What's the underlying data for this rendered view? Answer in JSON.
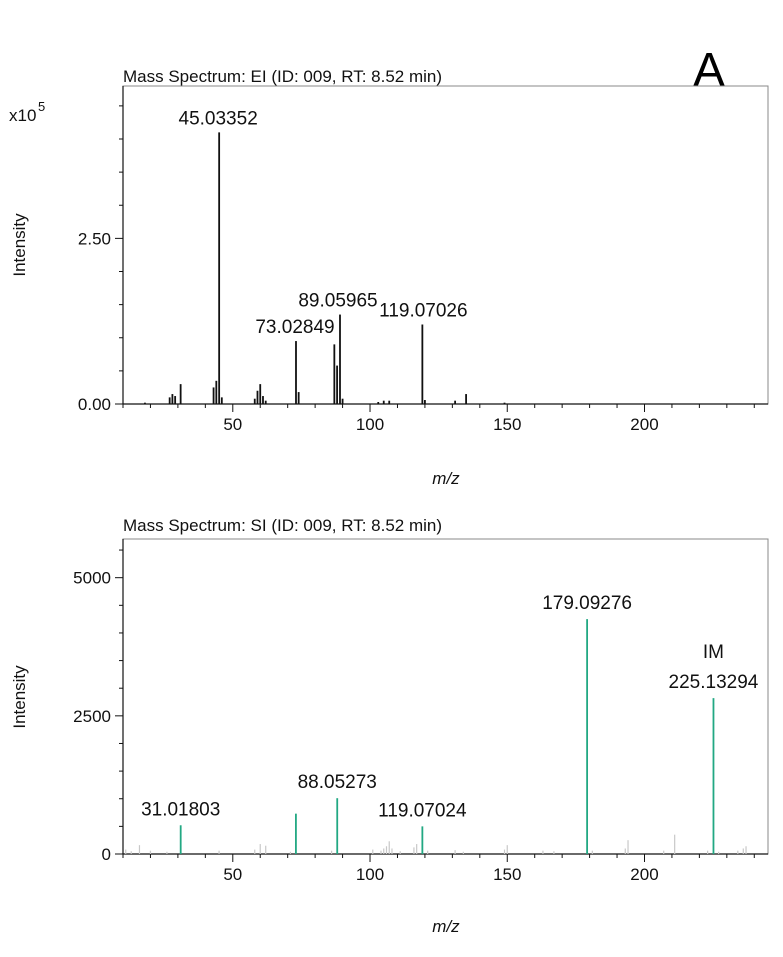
{
  "panel_label": "A",
  "chart_data": [
    {
      "type": "bar",
      "title": "Mass Spectrum: EI (ID: 009, RT: 8.52 min)",
      "xlabel": "m/z",
      "ylabel": "Intensity",
      "y_multiplier": "x10",
      "y_multiplier_exp": "5",
      "xlim": [
        10,
        245
      ],
      "ylim": [
        0,
        4.8
      ],
      "xticks": [
        {
          "v": 50,
          "label": "50"
        },
        {
          "v": 100,
          "label": "100"
        },
        {
          "v": 150,
          "label": "150"
        },
        {
          "v": 200,
          "label": "200"
        }
      ],
      "yticks": [
        {
          "v": 0,
          "label": "0.00"
        },
        {
          "v": 2.5,
          "label": "2.50"
        }
      ],
      "grid": false,
      "colors": {
        "peak": "#111111"
      },
      "peaks": [
        {
          "x": 18,
          "y": 0.02
        },
        {
          "x": 27,
          "y": 0.1
        },
        {
          "x": 28,
          "y": 0.15
        },
        {
          "x": 29,
          "y": 0.12
        },
        {
          "x": 31,
          "y": 0.3
        },
        {
          "x": 43,
          "y": 0.25
        },
        {
          "x": 44,
          "y": 0.35
        },
        {
          "x": 45.03352,
          "y": 4.1,
          "label": "45.03352"
        },
        {
          "x": 46,
          "y": 0.1
        },
        {
          "x": 58,
          "y": 0.08
        },
        {
          "x": 59,
          "y": 0.2
        },
        {
          "x": 60,
          "y": 0.3
        },
        {
          "x": 61,
          "y": 0.12
        },
        {
          "x": 62,
          "y": 0.05
        },
        {
          "x": 73.02849,
          "y": 0.95,
          "label": "73.02849"
        },
        {
          "x": 74,
          "y": 0.18
        },
        {
          "x": 87,
          "y": 0.9
        },
        {
          "x": 88,
          "y": 0.58
        },
        {
          "x": 89.05965,
          "y": 1.35,
          "label": "89.05965"
        },
        {
          "x": 90,
          "y": 0.08
        },
        {
          "x": 103,
          "y": 0.03
        },
        {
          "x": 105,
          "y": 0.05
        },
        {
          "x": 107,
          "y": 0.05
        },
        {
          "x": 119.07026,
          "y": 1.2,
          "label": "119.07026"
        },
        {
          "x": 120,
          "y": 0.06
        },
        {
          "x": 131,
          "y": 0.05
        },
        {
          "x": 135,
          "y": 0.15
        },
        {
          "x": 149,
          "y": 0.02
        }
      ]
    },
    {
      "type": "bar",
      "title": "Mass Spectrum: SI (ID: 009, RT: 8.52 min)",
      "xlabel": "m/z",
      "ylabel": "Intensity",
      "xlim": [
        10,
        245
      ],
      "ylim": [
        0,
        5700
      ],
      "xticks": [
        {
          "v": 50,
          "label": "50"
        },
        {
          "v": 100,
          "label": "100"
        },
        {
          "v": 150,
          "label": "150"
        },
        {
          "v": 200,
          "label": "200"
        }
      ],
      "yticks": [
        {
          "v": 0,
          "label": "0"
        },
        {
          "v": 2500,
          "label": "2500"
        },
        {
          "v": 5000,
          "label": "5000"
        }
      ],
      "grid": false,
      "colors": {
        "major": "#22a883",
        "minor": "#c8c8c8",
        "im_label": "#1a63c9"
      },
      "peaks": [
        {
          "x": 11,
          "y": 80,
          "kind": "minor"
        },
        {
          "x": 13,
          "y": 50,
          "kind": "minor"
        },
        {
          "x": 16,
          "y": 160,
          "kind": "minor"
        },
        {
          "x": 20,
          "y": 60,
          "kind": "minor"
        },
        {
          "x": 26,
          "y": 40,
          "kind": "minor"
        },
        {
          "x": 31.01803,
          "y": 520,
          "kind": "major",
          "label": "31.01803"
        },
        {
          "x": 45,
          "y": 60,
          "kind": "minor"
        },
        {
          "x": 58,
          "y": 80,
          "kind": "minor"
        },
        {
          "x": 60,
          "y": 180,
          "kind": "minor"
        },
        {
          "x": 62,
          "y": 150,
          "kind": "minor"
        },
        {
          "x": 71,
          "y": 40,
          "kind": "minor"
        },
        {
          "x": 73,
          "y": 730,
          "kind": "major"
        },
        {
          "x": 86,
          "y": 60,
          "kind": "minor"
        },
        {
          "x": 88.05273,
          "y": 1010,
          "kind": "major",
          "label": "88.05273"
        },
        {
          "x": 101,
          "y": 80,
          "kind": "minor"
        },
        {
          "x": 104,
          "y": 60,
          "kind": "minor"
        },
        {
          "x": 105,
          "y": 100,
          "kind": "minor"
        },
        {
          "x": 106,
          "y": 140,
          "kind": "minor"
        },
        {
          "x": 107,
          "y": 230,
          "kind": "minor"
        },
        {
          "x": 108,
          "y": 100,
          "kind": "minor"
        },
        {
          "x": 111,
          "y": 50,
          "kind": "minor"
        },
        {
          "x": 116,
          "y": 120,
          "kind": "minor"
        },
        {
          "x": 117,
          "y": 180,
          "kind": "minor"
        },
        {
          "x": 119.07024,
          "y": 500,
          "kind": "major",
          "label": "119.07024"
        },
        {
          "x": 121,
          "y": 60,
          "kind": "minor"
        },
        {
          "x": 131,
          "y": 70,
          "kind": "minor"
        },
        {
          "x": 134,
          "y": 40,
          "kind": "minor"
        },
        {
          "x": 149,
          "y": 80,
          "kind": "minor"
        },
        {
          "x": 150,
          "y": 160,
          "kind": "minor"
        },
        {
          "x": 163,
          "y": 60,
          "kind": "minor"
        },
        {
          "x": 167,
          "y": 50,
          "kind": "minor"
        },
        {
          "x": 179.09276,
          "y": 4250,
          "kind": "major",
          "label": "179.09276"
        },
        {
          "x": 181,
          "y": 60,
          "kind": "minor"
        },
        {
          "x": 193,
          "y": 100,
          "kind": "minor"
        },
        {
          "x": 194,
          "y": 250,
          "kind": "minor"
        },
        {
          "x": 207,
          "y": 60,
          "kind": "minor"
        },
        {
          "x": 211,
          "y": 350,
          "kind": "minor"
        },
        {
          "x": 223,
          "y": 60,
          "kind": "minor"
        },
        {
          "x": 225.13294,
          "y": 2820,
          "kind": "major",
          "label": "225.13294",
          "tag": "IM"
        },
        {
          "x": 227,
          "y": 40,
          "kind": "minor"
        },
        {
          "x": 234,
          "y": 60,
          "kind": "minor"
        },
        {
          "x": 236,
          "y": 100,
          "kind": "minor"
        },
        {
          "x": 237,
          "y": 140,
          "kind": "minor"
        }
      ]
    }
  ]
}
